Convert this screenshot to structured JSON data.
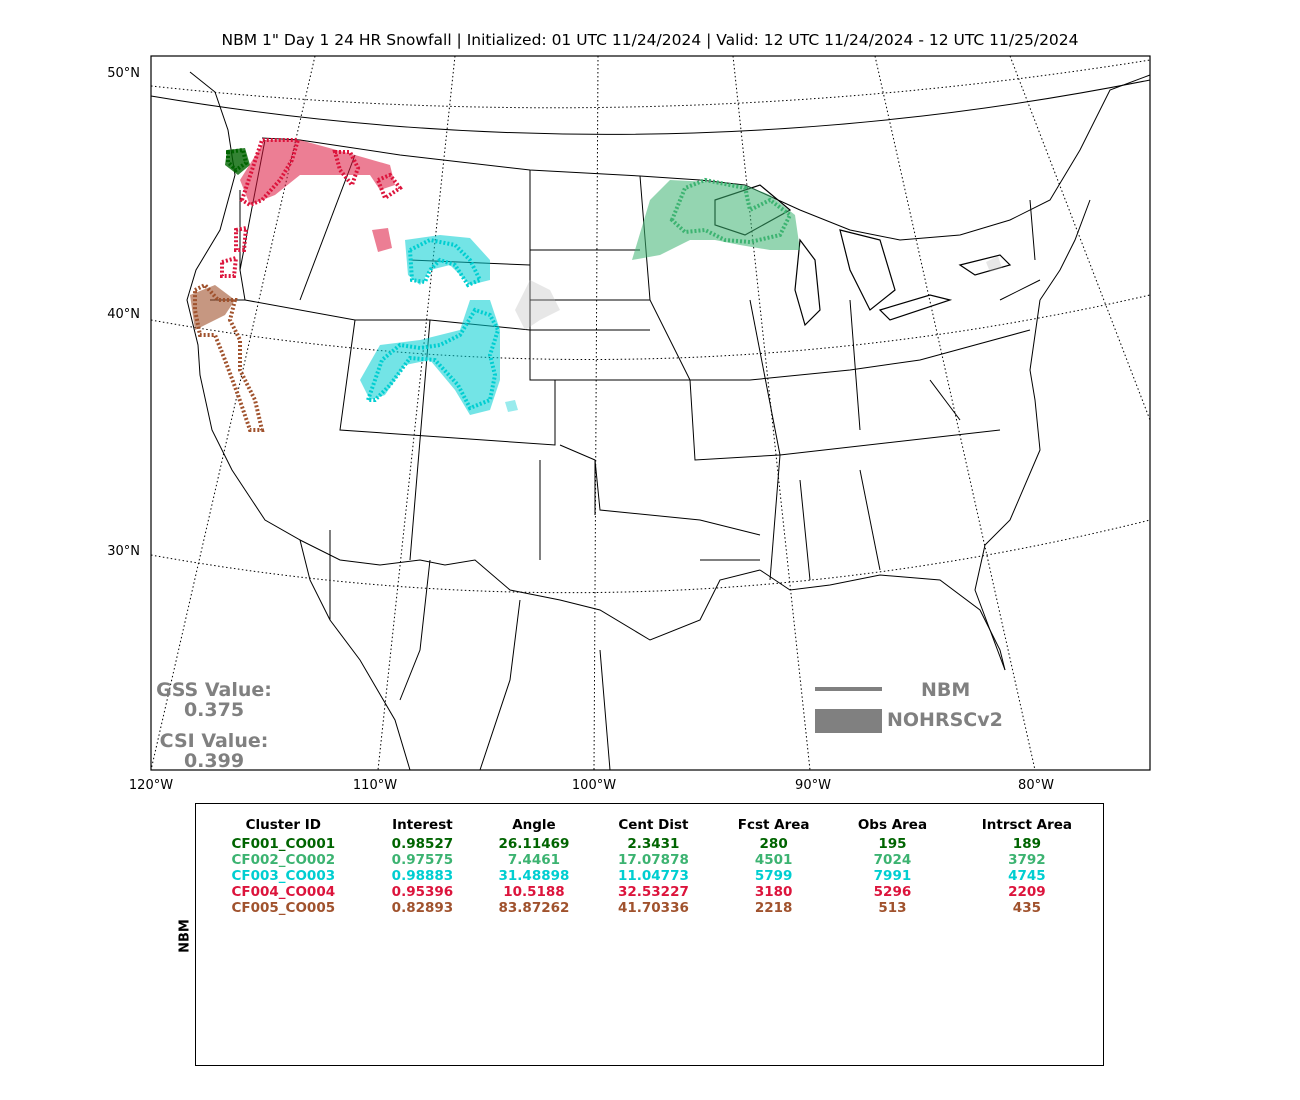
{
  "title": "NBM 1\" Day 1 24 HR Snowfall | Initialized: 01 UTC 11/24/2024 | Valid: 12 UTC 11/24/2024 - 12 UTC 11/25/2024",
  "lat_labels": [
    "50°N",
    "40°N",
    "30°N"
  ],
  "lon_labels": [
    "120°W",
    "110°W",
    "100°W",
    "90°W",
    "80°W"
  ],
  "gss": {
    "label": "GSS Value:",
    "value": "0.375"
  },
  "csi": {
    "label": "CSI Value:",
    "value": "0.399"
  },
  "legend": {
    "forecast": "NBM",
    "observed": "NOHRSCv2",
    "line_color": "#808080"
  },
  "table": {
    "side_label": "NBM",
    "headers": [
      "Cluster ID",
      "Interest",
      "Angle",
      "Cent Dist",
      "Fcst Area",
      "Obs Area",
      "Intrsct Area"
    ],
    "rows": [
      {
        "color": "#006400",
        "cells": [
          "CF001_CO001",
          "0.98527",
          "26.11469",
          "2.3431",
          "280",
          "195",
          "189"
        ]
      },
      {
        "color": "#3CB371",
        "cells": [
          "CF002_CO002",
          "0.97575",
          "7.4461",
          "17.07878",
          "4501",
          "7024",
          "3792"
        ]
      },
      {
        "color": "#00CED1",
        "cells": [
          "CF003_CO003",
          "0.98883",
          "31.48898",
          "11.04773",
          "5799",
          "7991",
          "4745"
        ]
      },
      {
        "color": "#DC143C",
        "cells": [
          "CF004_CO004",
          "0.95396",
          "10.5188",
          "32.53227",
          "3180",
          "5296",
          "2209"
        ]
      },
      {
        "color": "#A0522D",
        "cells": [
          "CF005_CO005",
          "0.82893",
          "83.87262",
          "41.70336",
          "2218",
          "513",
          "435"
        ]
      }
    ]
  }
}
